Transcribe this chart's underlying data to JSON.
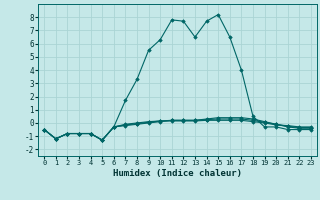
{
  "xlabel": "Humidex (Indice chaleur)",
  "xlim": [
    -0.5,
    23.5
  ],
  "ylim": [
    -2.5,
    9.0
  ],
  "xticks": [
    0,
    1,
    2,
    3,
    4,
    5,
    6,
    7,
    8,
    9,
    10,
    11,
    12,
    13,
    14,
    15,
    16,
    17,
    18,
    19,
    20,
    21,
    22,
    23
  ],
  "yticks": [
    -2,
    -1,
    0,
    1,
    2,
    3,
    4,
    5,
    6,
    7,
    8
  ],
  "background_color": "#c5e8e8",
  "grid_color": "#aad4d4",
  "line_color": "#006666",
  "series": [
    {
      "x": [
        0,
        1,
        2,
        3,
        4,
        5,
        6,
        7,
        8,
        9,
        10,
        11,
        12,
        13,
        14,
        15,
        16,
        17,
        18,
        19,
        20,
        21,
        22,
        23
      ],
      "y": [
        -0.5,
        -1.2,
        -0.8,
        -0.8,
        -0.8,
        -1.3,
        -0.3,
        1.7,
        3.3,
        5.5,
        6.3,
        7.8,
        7.7,
        6.5,
        7.7,
        8.2,
        6.5,
        4.0,
        0.5,
        -0.3,
        -0.3,
        -0.5,
        -0.5,
        -0.5
      ]
    },
    {
      "x": [
        0,
        1,
        2,
        3,
        4,
        5,
        6,
        7,
        8,
        9,
        10,
        11,
        12,
        13,
        14,
        15,
        16,
        17,
        18,
        19,
        20,
        21,
        22,
        23
      ],
      "y": [
        -0.5,
        -1.2,
        -0.8,
        -0.8,
        -0.8,
        -1.3,
        -0.3,
        -0.2,
        -0.1,
        0.0,
        0.1,
        0.2,
        0.2,
        0.2,
        0.3,
        0.4,
        0.4,
        0.4,
        0.3,
        0.1,
        -0.1,
        -0.3,
        -0.4,
        -0.4
      ]
    },
    {
      "x": [
        0,
        1,
        2,
        3,
        4,
        5,
        6,
        7,
        8,
        9,
        10,
        11,
        12,
        13,
        14,
        15,
        16,
        17,
        18,
        19,
        20,
        21,
        22,
        23
      ],
      "y": [
        -0.5,
        -1.2,
        -0.8,
        -0.8,
        -0.8,
        -1.3,
        -0.3,
        -0.15,
        -0.05,
        0.05,
        0.15,
        0.2,
        0.2,
        0.2,
        0.25,
        0.3,
        0.3,
        0.3,
        0.2,
        0.05,
        -0.1,
        -0.25,
        -0.35,
        -0.35
      ]
    },
    {
      "x": [
        0,
        1,
        2,
        3,
        4,
        5,
        6,
        7,
        8,
        9,
        10,
        11,
        12,
        13,
        14,
        15,
        16,
        17,
        18,
        19,
        20,
        21,
        22,
        23
      ],
      "y": [
        -0.5,
        -1.2,
        -0.8,
        -0.8,
        -0.8,
        -1.3,
        -0.3,
        -0.1,
        0.0,
        0.1,
        0.15,
        0.15,
        0.15,
        0.15,
        0.2,
        0.2,
        0.2,
        0.2,
        0.1,
        0.0,
        -0.15,
        -0.2,
        -0.3,
        -0.3
      ]
    }
  ]
}
